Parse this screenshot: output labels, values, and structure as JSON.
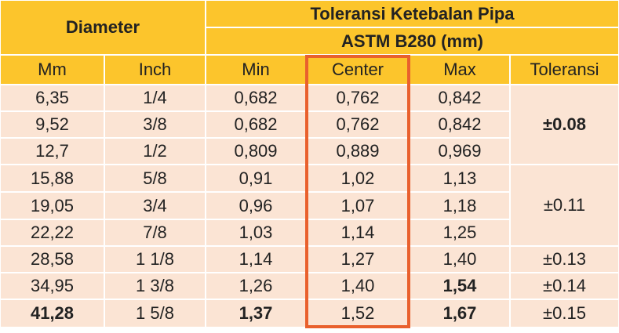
{
  "header": {
    "diameter": "Diameter",
    "title": "Toleransi Ketebalan Pipa",
    "subtitle": "ASTM B280 (mm)"
  },
  "columns": [
    "Mm",
    "Inch",
    "Min",
    "Center",
    "Max",
    "Toleransi"
  ],
  "rows": [
    [
      "6,35",
      "1/4",
      "0,682",
      "0,762",
      "0,842"
    ],
    [
      "9,52",
      "3/8",
      "0,682",
      "0,762",
      "0,842"
    ],
    [
      "12,7",
      "1/2",
      "0,809",
      "0,889",
      "0,969"
    ],
    [
      "15,88",
      "5/8",
      "0,91",
      "1,02",
      "1,13"
    ],
    [
      "19,05",
      "3/4",
      "0,96",
      "1,07",
      "1,18"
    ],
    [
      "22,22",
      "7/8",
      "1,03",
      "1,14",
      "1,25"
    ],
    [
      "28,58",
      "1 1/8",
      "1,14",
      "1,27",
      "1,40"
    ],
    [
      "34,95",
      "1 3/8",
      "1,26",
      "1,40",
      "1,54"
    ],
    [
      "41,28",
      "1 5/8",
      "1,37",
      "1,52",
      "1,67"
    ]
  ],
  "tolerances": [
    "±0.08",
    "±0.11",
    "±0.13",
    "±0.14",
    "±0.15"
  ]
}
